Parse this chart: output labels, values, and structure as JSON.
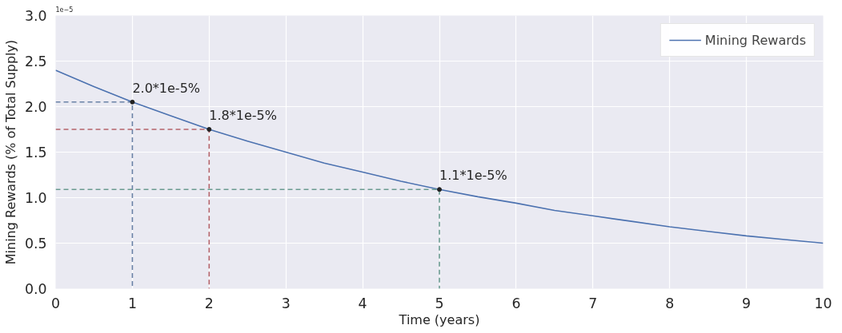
{
  "chart_data": {
    "type": "line",
    "xlabel": "Time (years)",
    "ylabel": "Mining Rewards (% of Total Supply)",
    "xlim": [
      0,
      10
    ],
    "ylim": [
      0,
      3.0
    ],
    "xticks": [
      0,
      1,
      2,
      3,
      4,
      5,
      6,
      7,
      8,
      9,
      10
    ],
    "yticks": [
      {
        "value": 0,
        "label": "0.0"
      },
      {
        "value": 0.5,
        "label": "0.5"
      },
      {
        "value": 1,
        "label": "1.0"
      },
      {
        "value": 1.5,
        "label": "1.5"
      },
      {
        "value": 2,
        "label": "2.0"
      },
      {
        "value": 2.5,
        "label": "2.5"
      },
      {
        "value": 3,
        "label": "3.0"
      }
    ],
    "grid": true,
    "legend": "top right",
    "series": [
      {
        "name": "Mining Rewards",
        "color": "#4c72b0",
        "line_style": "solid",
        "x": [
          0,
          0.5,
          1,
          1.5,
          2,
          2.5,
          3,
          3.5,
          4,
          4.5,
          5,
          5.5,
          6,
          6.5,
          7,
          7.5,
          8,
          8.5,
          9,
          9.5,
          10
        ],
        "values": [
          2.4,
          2.22,
          2.05,
          1.9,
          1.75,
          1.62,
          1.5,
          1.38,
          1.28,
          1.18,
          1.09,
          1.01,
          0.94,
          0.86,
          0.8,
          0.74,
          0.68,
          0.63,
          0.58,
          0.54,
          0.5
        ]
      },
      {
        "color": "#6a82a6",
        "line_style": "dashed",
        "x": [
          0,
          1,
          1
        ],
        "values": [
          2.05,
          2.05,
          0
        ]
      },
      {
        "color": "#b5646b",
        "line_style": "dashed",
        "x": [
          0,
          2,
          2
        ],
        "values": [
          1.75,
          1.75,
          0
        ]
      },
      {
        "color": "#6a9a90",
        "line_style": "dashed",
        "x": [
          0,
          5,
          5
        ],
        "values": [
          1.09,
          1.09,
          0
        ]
      },
      {
        "type": "scatter",
        "marker": "circle",
        "color": "#222222",
        "x": [
          1,
          2,
          5
        ],
        "values": [
          2.05,
          1.75,
          1.09
        ]
      }
    ],
    "annotations": [
      "1e−5",
      {
        "text": "2.0*1e-5%",
        "x": 1,
        "y": 2.05
      },
      {
        "text": "1.8*1e-5%",
        "x": 2,
        "y": 1.75
      },
      {
        "text": "1.1*1e-5%",
        "x": 5,
        "y": 1.09
      }
    ]
  }
}
